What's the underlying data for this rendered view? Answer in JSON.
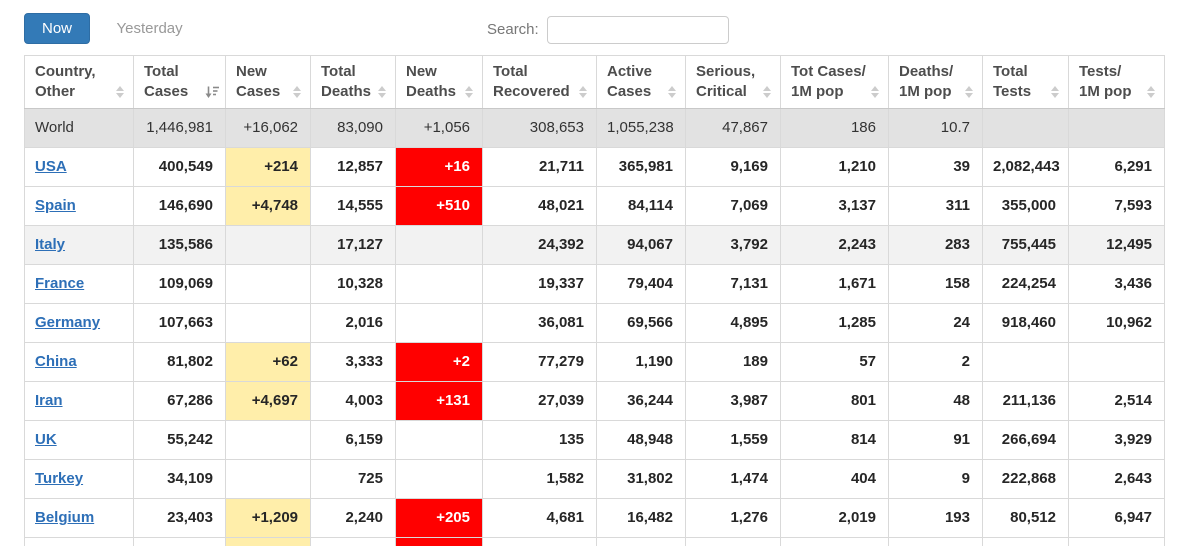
{
  "colors": {
    "accent_blue": "#337ab7",
    "link_blue": "#2d6fb7",
    "highlight_yellow": "#FFEEAA",
    "alert_red": "#FF0000",
    "world_row_bg": "#e2e2e2"
  },
  "toolbar": {
    "now_label": "Now",
    "yesterday_label": "Yesterday",
    "search_label": "Search:",
    "search_value": ""
  },
  "table": {
    "columns": [
      {
        "key": "country",
        "line1": "Country,",
        "line2": "Other",
        "sort": "unsorted"
      },
      {
        "key": "total_cases",
        "line1": "Total",
        "line2": "Cases",
        "sort": "desc"
      },
      {
        "key": "new_cases",
        "line1": "New",
        "line2": "Cases",
        "sort": "unsorted"
      },
      {
        "key": "total_deaths",
        "line1": "Total",
        "line2": "Deaths",
        "sort": "unsorted"
      },
      {
        "key": "new_deaths",
        "line1": "New",
        "line2": "Deaths",
        "sort": "unsorted"
      },
      {
        "key": "total_recovered",
        "line1": "Total",
        "line2": "Recovered",
        "sort": "unsorted"
      },
      {
        "key": "active_cases",
        "line1": "Active",
        "line2": "Cases",
        "sort": "unsorted"
      },
      {
        "key": "serious_critical",
        "line1": "Serious,",
        "line2": "Critical",
        "sort": "unsorted"
      },
      {
        "key": "cases_1m",
        "line1": "Tot Cases/",
        "line2": "1M pop",
        "sort": "unsorted"
      },
      {
        "key": "deaths_1m",
        "line1": "Deaths/",
        "line2": "1M pop",
        "sort": "unsorted"
      },
      {
        "key": "total_tests",
        "line1": "Total",
        "line2": "Tests",
        "sort": "unsorted"
      },
      {
        "key": "tests_1m",
        "line1": "Tests/",
        "line2": "1M pop",
        "sort": "unsorted"
      }
    ],
    "rows": [
      {
        "country": "World",
        "is_world": true,
        "link": false,
        "total_cases": "1,446,981",
        "new_cases": "+16,062",
        "total_deaths": "83,090",
        "new_deaths": "+1,056",
        "total_recovered": "308,653",
        "active_cases": "1,055,238",
        "serious_critical": "47,867",
        "cases_1m": "186",
        "deaths_1m": "10.7",
        "total_tests": "",
        "tests_1m": ""
      },
      {
        "country": "USA",
        "link": true,
        "total_cases": "400,549",
        "new_cases": "+214",
        "total_deaths": "12,857",
        "new_deaths": "+16",
        "total_recovered": "21,711",
        "active_cases": "365,981",
        "serious_critical": "9,169",
        "cases_1m": "1,210",
        "deaths_1m": "39",
        "total_tests": "2,082,443",
        "tests_1m": "6,291"
      },
      {
        "country": "Spain",
        "link": true,
        "total_cases": "146,690",
        "new_cases": "+4,748",
        "total_deaths": "14,555",
        "new_deaths": "+510",
        "total_recovered": "48,021",
        "active_cases": "84,114",
        "serious_critical": "7,069",
        "cases_1m": "3,137",
        "deaths_1m": "311",
        "total_tests": "355,000",
        "tests_1m": "7,593"
      },
      {
        "country": "Italy",
        "link": true,
        "highlight": true,
        "total_cases": "135,586",
        "new_cases": "",
        "total_deaths": "17,127",
        "new_deaths": "",
        "total_recovered": "24,392",
        "active_cases": "94,067",
        "serious_critical": "3,792",
        "cases_1m": "2,243",
        "deaths_1m": "283",
        "total_tests": "755,445",
        "tests_1m": "12,495"
      },
      {
        "country": "France",
        "link": true,
        "total_cases": "109,069",
        "new_cases": "",
        "total_deaths": "10,328",
        "new_deaths": "",
        "total_recovered": "19,337",
        "active_cases": "79,404",
        "serious_critical": "7,131",
        "cases_1m": "1,671",
        "deaths_1m": "158",
        "total_tests": "224,254",
        "tests_1m": "3,436"
      },
      {
        "country": "Germany",
        "link": true,
        "total_cases": "107,663",
        "new_cases": "",
        "total_deaths": "2,016",
        "new_deaths": "",
        "total_recovered": "36,081",
        "active_cases": "69,566",
        "serious_critical": "4,895",
        "cases_1m": "1,285",
        "deaths_1m": "24",
        "total_tests": "918,460",
        "tests_1m": "10,962"
      },
      {
        "country": "China",
        "link": true,
        "total_cases": "81,802",
        "new_cases": "+62",
        "total_deaths": "3,333",
        "new_deaths": "+2",
        "total_recovered": "77,279",
        "active_cases": "1,190",
        "serious_critical": "189",
        "cases_1m": "57",
        "deaths_1m": "2",
        "total_tests": "",
        "tests_1m": ""
      },
      {
        "country": "Iran",
        "link": true,
        "total_cases": "67,286",
        "new_cases": "+4,697",
        "total_deaths": "4,003",
        "new_deaths": "+131",
        "total_recovered": "27,039",
        "active_cases": "36,244",
        "serious_critical": "3,987",
        "cases_1m": "801",
        "deaths_1m": "48",
        "total_tests": "211,136",
        "tests_1m": "2,514"
      },
      {
        "country": "UK",
        "link": true,
        "total_cases": "55,242",
        "new_cases": "",
        "total_deaths": "6,159",
        "new_deaths": "",
        "total_recovered": "135",
        "active_cases": "48,948",
        "serious_critical": "1,559",
        "cases_1m": "814",
        "deaths_1m": "91",
        "total_tests": "266,694",
        "tests_1m": "3,929"
      },
      {
        "country": "Turkey",
        "link": true,
        "total_cases": "34,109",
        "new_cases": "",
        "total_deaths": "725",
        "new_deaths": "",
        "total_recovered": "1,582",
        "active_cases": "31,802",
        "serious_critical": "1,474",
        "cases_1m": "404",
        "deaths_1m": "9",
        "total_tests": "222,868",
        "tests_1m": "2,643"
      },
      {
        "country": "Belgium",
        "link": true,
        "total_cases": "23,403",
        "new_cases": "+1,209",
        "total_deaths": "2,240",
        "new_deaths": "+205",
        "total_recovered": "4,681",
        "active_cases": "16,482",
        "serious_critical": "1,276",
        "cases_1m": "2,019",
        "deaths_1m": "193",
        "total_tests": "80,512",
        "tests_1m": "6,947"
      },
      {
        "country": "",
        "link": false,
        "partial": true,
        "total_cases": "",
        "new_cases": "",
        "total_deaths": "",
        "new_deaths": "",
        "total_recovered": "",
        "active_cases": "",
        "serious_critical": "",
        "cases_1m": "",
        "deaths_1m": "",
        "total_tests": "",
        "tests_1m": ""
      }
    ]
  }
}
